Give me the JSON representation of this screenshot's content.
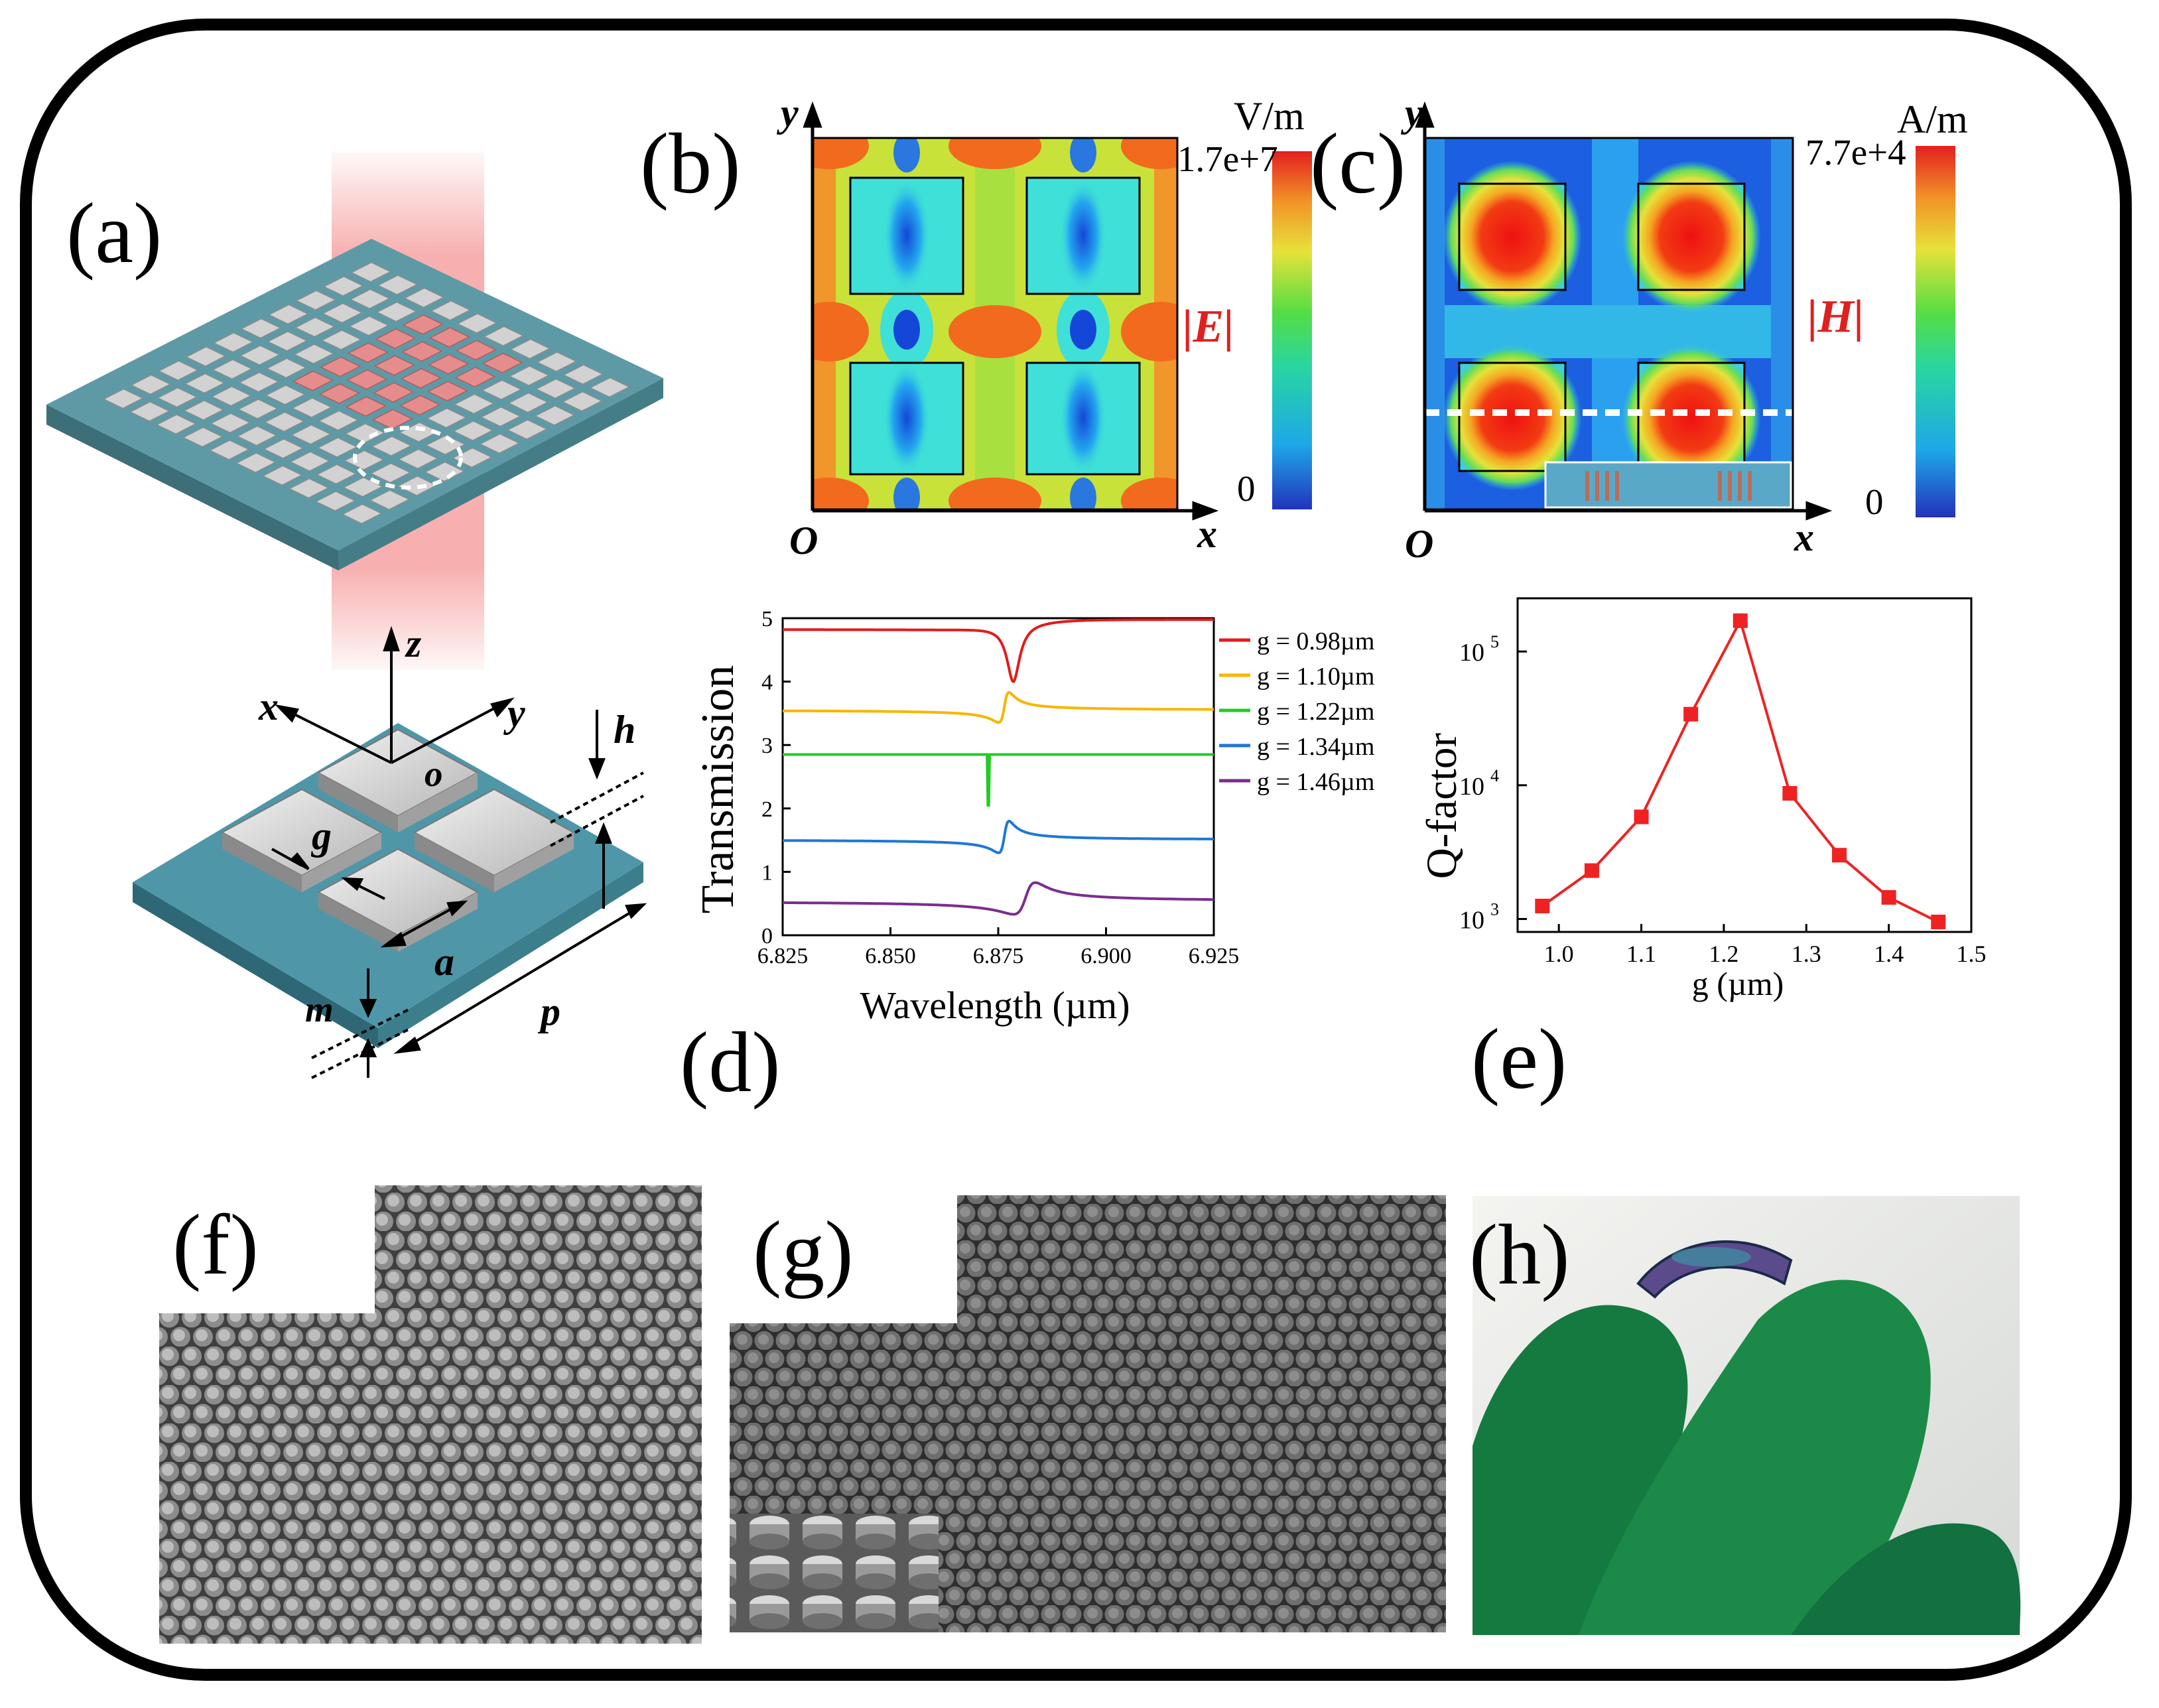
{
  "panel_labels": {
    "a": "(a)",
    "b": "(b)",
    "c": "(c)",
    "d": "(d)",
    "e": "(e)",
    "f": "(f)",
    "g": "(g)",
    "h": "(h)"
  },
  "schematic": {
    "z": "z",
    "x": "x",
    "y": "y",
    "o": "o",
    "h": "h",
    "g": "g",
    "a": "a",
    "p": "p",
    "m": "m"
  },
  "field_maps": {
    "e": {
      "unit": "V/m",
      "max": "1.7e+7",
      "min": "0",
      "quantity": "|E|",
      "axis_y": "y",
      "axis_x": "x",
      "origin": "O"
    },
    "h": {
      "unit": "A/m",
      "max": "7.7e+4",
      "min": "0",
      "quantity": "|H|",
      "axis_y": "y",
      "axis_x": "x",
      "origin": "O"
    }
  },
  "colors": {
    "red": "#e41a1c",
    "orange": "#f7b500",
    "green": "#22cc22",
    "blue": "#1f77d4",
    "purple": "#7b2d8e",
    "qline": "#ee2222"
  },
  "chart_data": [
    {
      "type": "line",
      "xlabel": "Wavelength (µm)",
      "ylabel": "Transmission",
      "xlim": [
        6.825,
        6.925
      ],
      "ylim": [
        0,
        5
      ],
      "xticks": [
        "6.825",
        "6.850",
        "6.875",
        "6.900",
        "6.925"
      ],
      "yticks": [
        "0",
        "1",
        "2",
        "3",
        "4",
        "5"
      ],
      "legend_position": "right",
      "series": [
        {
          "name": "g = 0.98µm",
          "color": "#e41a1c",
          "baseline": 4.9,
          "center": 6.8785,
          "depth": 0.9,
          "width": 0.0018,
          "shape": "dip"
        },
        {
          "name": "g = 1.10µm",
          "color": "#f7b500",
          "baseline": 3.88,
          "center": 6.8765,
          "depth": 0.95,
          "width": 0.0012,
          "shape": "fano"
        },
        {
          "name": "g = 1.22µm",
          "color": "#22cc22",
          "baseline": 2.85,
          "center": 6.8725,
          "depth": 1.0,
          "width": 0.0001,
          "shape": "spike"
        },
        {
          "name": "g = 1.34µm",
          "color": "#1f77d4",
          "baseline": 1.85,
          "center": 6.8765,
          "depth": 1.0,
          "width": 0.0012,
          "shape": "fano"
        },
        {
          "name": "g = 1.46µm",
          "color": "#7b2d8e",
          "baseline": 0.88,
          "center": 6.8815,
          "depth": 1.0,
          "width": 0.0025,
          "shape": "fano"
        }
      ]
    },
    {
      "type": "scatter",
      "xlabel": "g (µm)",
      "ylabel": "Q-factor",
      "xlim": [
        0.95,
        1.5
      ],
      "ylim": [
        800,
        250000
      ],
      "yscale": "log",
      "xticks": [
        "1.0",
        "1.1",
        "1.2",
        "1.3",
        "1.4",
        "1.5"
      ],
      "yticks": [
        "10",
        "10",
        "10"
      ],
      "ytick_exponents": [
        "3",
        "4",
        "5"
      ],
      "x": [
        0.98,
        1.04,
        1.1,
        1.16,
        1.22,
        1.28,
        1.34,
        1.4,
        1.46
      ],
      "y": [
        1250,
        2300,
        5800,
        34000,
        170000,
        8700,
        3000,
        1450,
        950
      ]
    }
  ]
}
